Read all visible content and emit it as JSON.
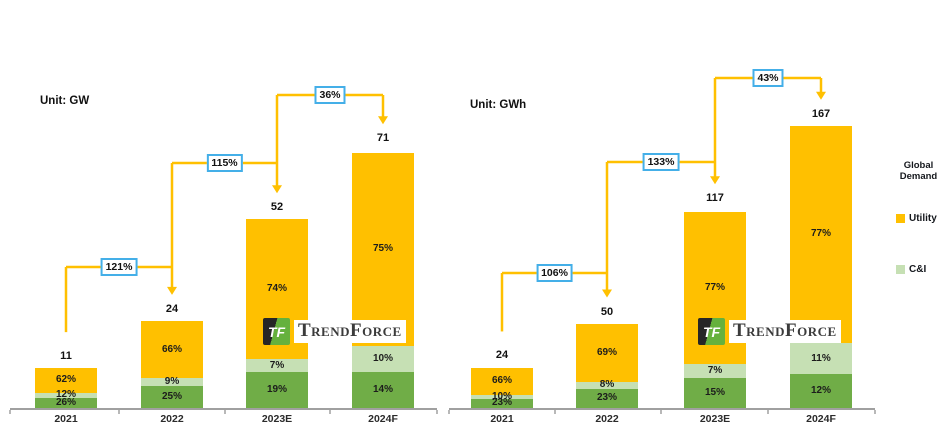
{
  "chart_data": [
    {
      "type": "bar",
      "stacked": true,
      "title": "Unit: GW",
      "unit": "GW",
      "categories": [
        "2021",
        "2022",
        "2023E",
        "2024F"
      ],
      "totals": [
        11,
        24,
        52,
        71
      ],
      "series": [
        {
          "name": "Utility",
          "color": "#FFC000",
          "values_pct": [
            62,
            66,
            74,
            75
          ]
        },
        {
          "name": "C&I",
          "color": "#C6E0B4",
          "values_pct": [
            12,
            9,
            7,
            10
          ]
        },
        {
          "name": "",
          "color": "#70AD47",
          "values_pct": [
            26,
            25,
            19,
            14
          ]
        }
      ],
      "growth_pct": [
        121,
        115,
        36
      ],
      "legend_position": "right",
      "grid": false,
      "value_labels": "percent-inside, total-above"
    },
    {
      "type": "bar",
      "stacked": true,
      "title": "Unit: GWh",
      "unit": "GWh",
      "categories": [
        "2021",
        "2022",
        "2023E",
        "2024F"
      ],
      "totals": [
        24,
        50,
        117,
        167
      ],
      "series": [
        {
          "name": "Utility",
          "color": "#FFC000",
          "values_pct": [
            66,
            69,
            77,
            77
          ]
        },
        {
          "name": "C&I",
          "color": "#C6E0B4",
          "values_pct": [
            10,
            8,
            7,
            11
          ]
        },
        {
          "name": "",
          "color": "#70AD47",
          "values_pct": [
            23,
            23,
            15,
            12
          ]
        }
      ],
      "growth_pct": [
        106,
        133,
        43
      ],
      "legend_position": "right",
      "grid": false,
      "value_labels": "percent-inside, total-above"
    }
  ],
  "legend": {
    "title": "Global Demand",
    "items": [
      {
        "label": "Utility",
        "color": "#FFC000"
      },
      {
        "label": "C&I",
        "color": "#C6E0B4"
      }
    ]
  },
  "watermark": {
    "monogram": "TF",
    "text": "TrendForce"
  },
  "style": {
    "arrow_color": "#FFC000",
    "callout_border": "#44AFE8",
    "axis_color": "#A0A0A0"
  }
}
